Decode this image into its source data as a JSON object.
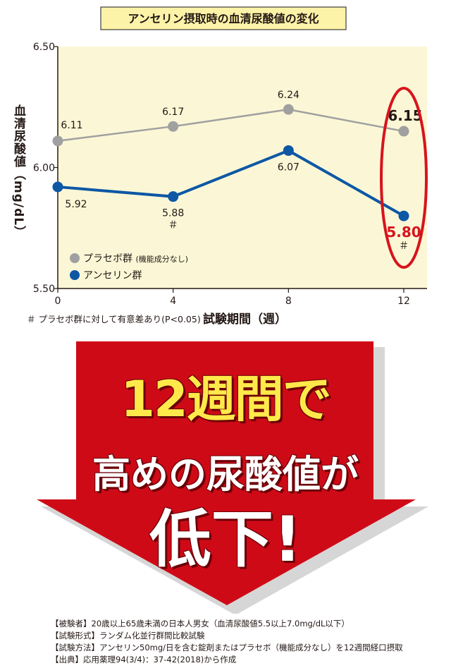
{
  "chart_data": {
    "type": "line",
    "title": "アンセリン摂取時の血清尿酸値の変化",
    "xlabel": "試験期間（週）",
    "ylabel": "血清尿酸値（mg/dL）",
    "x": [
      0,
      4,
      8,
      12
    ],
    "x_tick_labels": [
      "0",
      "4",
      "8",
      "12"
    ],
    "y_tick_labels": [
      "6.50",
      "6.00",
      "5.50"
    ],
    "xlim": [
      0,
      12
    ],
    "ylim": [
      5.5,
      6.5
    ],
    "grid": false,
    "legend_position": "bottom-left",
    "series": [
      {
        "name": "プラセボ群",
        "name_note": "(機能成分なし)",
        "values": [
          6.11,
          6.17,
          6.24,
          6.15
        ],
        "labels": [
          "6.11",
          "6.17",
          "6.24",
          "6.15"
        ],
        "color": "#a0a0a0"
      },
      {
        "name": "アンセリン群",
        "values": [
          5.92,
          5.88,
          6.07,
          5.8
        ],
        "labels": [
          "5.92",
          "5.88",
          "6.07",
          "5.80"
        ],
        "color": "#0d57a5",
        "significance_marks": [
          "",
          "＃",
          "",
          "＃"
        ]
      }
    ],
    "footnote": "＃ プラセボ群に対して有意差あり(P<0.05)",
    "colors": {
      "plot_background": "#fbf7d6",
      "title_box": "#fdf3a8",
      "highlight_ellipse": "#d7141e",
      "highlight_value": "#d7141e"
    }
  },
  "callout": {
    "line1": "12週間で",
    "line2": "高めの尿酸値が",
    "line3": "低下!",
    "arrow_color": "#cf0a17",
    "line1_color": "#ffe94a"
  },
  "notes": [
    "【被験者】20歳以上65歳未満の日本人男女（血清尿酸値5.5以上7.0mg/dL以下）",
    "【試験形式】ランダム化並行群間比較試験",
    "【試験方法】アンセリン50mg/日を含む錠剤またはプラセボ（機能成分なし）を12週間経口摂取",
    "【出典】応用薬理94(3/4)：37-42(2018)から作成"
  ]
}
